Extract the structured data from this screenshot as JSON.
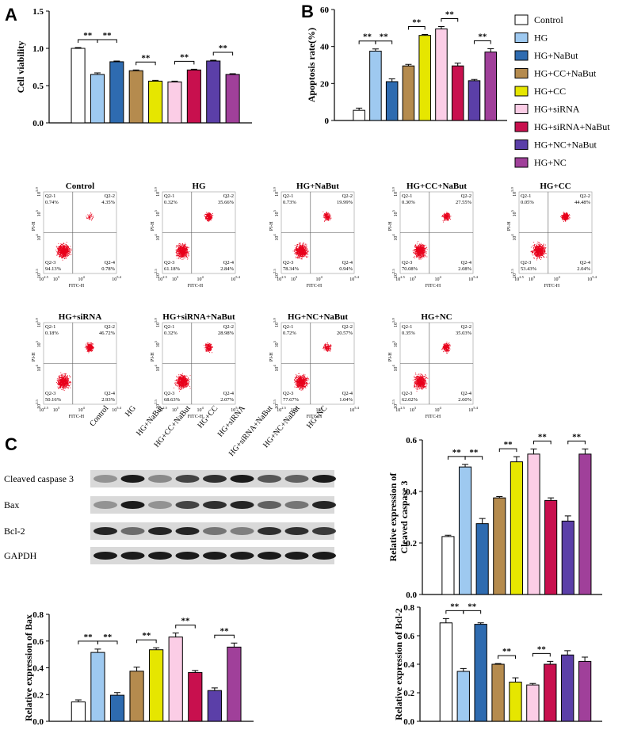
{
  "panel_labels": [
    "A",
    "B",
    "C"
  ],
  "chart_data": [
    {
      "type": "bar",
      "ylabel": [
        "Cell viability"
      ],
      "categories": [
        null,
        null,
        null,
        null,
        null,
        null,
        null,
        null,
        null
      ],
      "values": [
        1.0,
        0.65,
        0.82,
        0.7,
        0.56,
        0.55,
        0.71,
        0.83,
        0.65
      ],
      "errors": [
        0.01,
        0.02,
        0.01,
        0.01,
        0.01,
        0.01,
        0.01,
        0.01,
        0.01
      ],
      "colors": [
        "#ffffff",
        "#9ec9f0",
        "#2e6bb0",
        "#b58b4e",
        "#e6e600",
        "#fbcde6",
        "#c8104e",
        "#5b3fa8",
        "#a0409a"
      ],
      "ylim": [
        0,
        1.5
      ],
      "yticks": [
        {
          "value": 0,
          "label": "0.0"
        },
        0.5,
        {
          "value": 1,
          "label": "1.0"
        },
        1.5
      ],
      "annotations": [
        "**",
        "**",
        "**",
        "**",
        "**"
      ]
    },
    {
      "type": "bar",
      "ylabel": [
        "Apoptosis rate(%)"
      ],
      "categories": [
        null,
        null,
        null,
        null,
        null,
        null,
        null,
        null,
        null
      ],
      "values": [
        5.5,
        37.5,
        21,
        29.5,
        46,
        49.5,
        29.5,
        21.5,
        37
      ],
      "errors": [
        1.2,
        1.2,
        1.5,
        0.8,
        0.5,
        1.3,
        1.5,
        0.7,
        1.8
      ],
      "colors": [
        "#ffffff",
        "#9ec9f0",
        "#2e6bb0",
        "#b58b4e",
        "#e6e600",
        "#fbcde6",
        "#c8104e",
        "#5b3fa8",
        "#a0409a"
      ],
      "ylim": [
        0,
        60
      ],
      "yticks": [
        0,
        20,
        40,
        60
      ],
      "annotations": [
        "**",
        "**",
        "**",
        "**",
        "**"
      ],
      "legend": {
        "position": "right",
        "labels": [
          "Control",
          "HG",
          "HG+NaBut",
          "HG+CC+NaBut",
          "HG+CC",
          "HG+siRNA",
          "HG+siRNA+NaBut",
          "HG+NC+NaBut",
          "HG+NC"
        ]
      }
    },
    {
      "type": "bar",
      "ylabel": [
        "Relative expression of",
        "Cleaved caspase 3"
      ],
      "categories": [
        null,
        null,
        null,
        null,
        null,
        null,
        null,
        null,
        null
      ],
      "values": [
        0.225,
        0.495,
        0.275,
        0.375,
        0.515,
        0.545,
        0.365,
        0.285,
        0.545
      ],
      "errors": [
        0.005,
        0.01,
        0.02,
        0.005,
        0.02,
        0.02,
        0.01,
        0.02,
        0.02
      ],
      "colors": [
        "#ffffff",
        "#9ec9f0",
        "#2e6bb0",
        "#b58b4e",
        "#e6e600",
        "#fbcde6",
        "#c8104e",
        "#5b3fa8",
        "#a0409a"
      ],
      "ylim": [
        0,
        0.6
      ],
      "yticks": [
        {
          "value": 0,
          "label": "0.0"
        },
        0.2,
        0.4,
        0.6
      ],
      "annotations": [
        "**",
        "**",
        "**",
        "**",
        "**"
      ]
    },
    {
      "type": "bar",
      "ylabel": [
        "Relative expression of Bax"
      ],
      "categories": [
        null,
        null,
        null,
        null,
        null,
        null,
        null,
        null,
        null
      ],
      "values": [
        0.145,
        0.515,
        0.195,
        0.375,
        0.535,
        0.63,
        0.365,
        0.23,
        0.555
      ],
      "errors": [
        0.015,
        0.025,
        0.02,
        0.03,
        0.015,
        0.03,
        0.015,
        0.02,
        0.03
      ],
      "colors": [
        "#ffffff",
        "#9ec9f0",
        "#2e6bb0",
        "#b58b4e",
        "#e6e600",
        "#fbcde6",
        "#c8104e",
        "#5b3fa8",
        "#a0409a"
      ],
      "ylim": [
        0,
        0.8
      ],
      "yticks": [
        {
          "value": 0,
          "label": "0.0"
        },
        0.2,
        0.4,
        0.6,
        0.8
      ],
      "annotations": [
        "**",
        "**",
        "**",
        "**",
        "**"
      ]
    },
    {
      "type": "bar",
      "ylabel": [
        "Relative expression of Bcl-2"
      ],
      "categories": [
        null,
        null,
        null,
        null,
        null,
        null,
        null,
        null,
        null
      ],
      "values": [
        0.69,
        0.35,
        0.68,
        0.4,
        0.275,
        0.255,
        0.4,
        0.465,
        0.42
      ],
      "errors": [
        0.03,
        0.02,
        0.01,
        0.005,
        0.03,
        0.01,
        0.02,
        0.03,
        0.03
      ],
      "colors": [
        "#ffffff",
        "#9ec9f0",
        "#2e6bb0",
        "#b58b4e",
        "#e6e600",
        "#fbcde6",
        "#c8104e",
        "#5b3fa8",
        "#a0409a"
      ],
      "ylim": [
        0,
        0.8
      ],
      "yticks": [
        {
          "value": 0,
          "label": "0.0"
        },
        0.2,
        0.4,
        0.6,
        0.8
      ],
      "annotations": [
        "**",
        "**",
        "**",
        "**"
      ]
    }
  ],
  "flow": {
    "x_label": "FITC-H",
    "y_label": "PI-H",
    "x_ticks": [
      {
        "base": "10",
        "exp": "2.5"
      },
      {
        "base": "10",
        "exp": "3"
      },
      {
        "base": "10",
        "exp": "4"
      },
      {
        "base": "10",
        "exp": "5.4"
      }
    ],
    "y_ticks": [
      {
        "base": "10",
        "exp": "2.5"
      },
      {
        "base": "10",
        "exp": "4"
      },
      {
        "base": "10",
        "exp": "5"
      },
      {
        "base": "10",
        "exp": "5.9"
      }
    ],
    "plots": [
      {
        "title": "Control",
        "quadrants": [
          {
            "name": "Q2-1",
            "pct": "0.74%"
          },
          {
            "name": "Q2-2",
            "pct": "4.35%"
          },
          {
            "name": "Q2-3",
            "pct": "94.13%"
          },
          {
            "name": "Q2-4",
            "pct": "0.78%"
          }
        ]
      },
      {
        "title": "HG",
        "quadrants": [
          {
            "name": "Q2-1",
            "pct": "0.32%"
          },
          {
            "name": "Q2-2",
            "pct": "35.66%"
          },
          {
            "name": "Q2-3",
            "pct": "61.18%"
          },
          {
            "name": "Q2-4",
            "pct": "2.84%"
          }
        ]
      },
      {
        "title": "HG+NaBut",
        "quadrants": [
          {
            "name": "Q2-1",
            "pct": "0.73%"
          },
          {
            "name": "Q2-2",
            "pct": "19.99%"
          },
          {
            "name": "Q2-3",
            "pct": "78.34%"
          },
          {
            "name": "Q2-4",
            "pct": "0.94%"
          }
        ]
      },
      {
        "title": "HG+CC+NaBut",
        "quadrants": [
          {
            "name": "Q2-1",
            "pct": "0.30%"
          },
          {
            "name": "Q2-2",
            "pct": "27.55%"
          },
          {
            "name": "Q2-3",
            "pct": "70.08%"
          },
          {
            "name": "Q2-4",
            "pct": "2.08%"
          }
        ]
      },
      {
        "title": "HG+CC",
        "quadrants": [
          {
            "name": "Q2-1",
            "pct": "0.05%"
          },
          {
            "name": "Q2-2",
            "pct": "44.48%"
          },
          {
            "name": "Q2-3",
            "pct": "53.43%"
          },
          {
            "name": "Q2-4",
            "pct": "2.04%"
          }
        ]
      },
      {
        "title": "HG+siRNA",
        "quadrants": [
          {
            "name": "Q2-1",
            "pct": "0.18%"
          },
          {
            "name": "Q2-2",
            "pct": "46.72%"
          },
          {
            "name": "Q2-3",
            "pct": "50.16%"
          },
          {
            "name": "Q2-4",
            "pct": "2.93%"
          }
        ]
      },
      {
        "title": "HG+siRNA+NaBut",
        "quadrants": [
          {
            "name": "Q2-1",
            "pct": "0.32%"
          },
          {
            "name": "Q2-2",
            "pct": "28.98%"
          },
          {
            "name": "Q2-3",
            "pct": "68.63%"
          },
          {
            "name": "Q2-4",
            "pct": "2.07%"
          }
        ]
      },
      {
        "title": "HG+NC+NaBut",
        "quadrants": [
          {
            "name": "Q2-1",
            "pct": "0.72%"
          },
          {
            "name": "Q2-2",
            "pct": "20.57%"
          },
          {
            "name": "Q2-3",
            "pct": "77.67%"
          },
          {
            "name": "Q2-4",
            "pct": "1.04%"
          }
        ]
      },
      {
        "title": "HG+NC",
        "quadrants": [
          {
            "name": "Q2-1",
            "pct": "0.35%"
          },
          {
            "name": "Q2-2",
            "pct": "35.03%"
          },
          {
            "name": "Q2-3",
            "pct": "62.02%"
          },
          {
            "name": "Q2-4",
            "pct": "2.60%"
          }
        ]
      }
    ]
  },
  "blot": {
    "lanes": [
      "Control",
      "HG",
      "HG+NaBut",
      "HG+CC+NaBut",
      "HG+CC",
      "HG+siRNA",
      "HG+siRNA+NaBut",
      "HG+NC+NaBut",
      "HG+NC"
    ],
    "rows": [
      "Cleaved caspase 3",
      "Bax",
      "Bcl-2",
      "GAPDH"
    ]
  }
}
